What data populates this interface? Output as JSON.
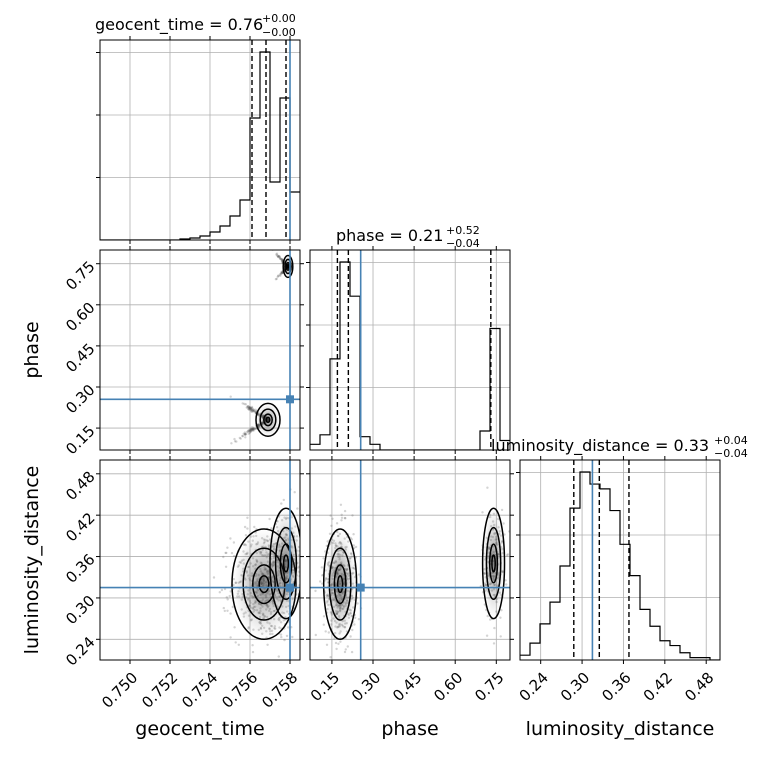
{
  "colors": {
    "truth": "#4682b4",
    "grid": "#b0b0b0",
    "hist": "#000000",
    "scatter": "#555555"
  },
  "titles": {
    "geocent_time": {
      "prefix": "geocent_time = 0.76",
      "plus": "+0.00",
      "minus": "−0.00"
    },
    "phase": {
      "prefix": "phase = 0.21",
      "plus": "+0.52",
      "minus": "−0.04"
    },
    "luminosity_distance": {
      "prefix": "luminosity_distance = 0.33",
      "plus": "+0.04",
      "minus": "−0.04"
    }
  },
  "axis_labels": {
    "x_geocent_time": "geocent_time",
    "x_phase": "phase",
    "x_luminosity_distance": "luminosity_distance",
    "y_phase": "phase",
    "y_luminosity_distance": "luminosity_distance"
  },
  "chart_data": {
    "type": "corner",
    "parameters": [
      "geocent_time",
      "phase",
      "luminosity_distance"
    ],
    "ranges": {
      "geocent_time": [
        0.7485,
        0.7585
      ],
      "phase": [
        0.07,
        0.8
      ],
      "luminosity_distance": [
        0.21,
        0.5
      ]
    },
    "ticks": {
      "geocent_time": [
        "0.750",
        "0.752",
        "0.754",
        "0.756",
        "0.758"
      ],
      "phase": [
        "0.15",
        "0.30",
        "0.45",
        "0.60",
        "0.75"
      ],
      "luminosity_distance": [
        "0.24",
        "0.30",
        "0.36",
        "0.42",
        "0.48"
      ]
    },
    "truths": {
      "geocent_time": 0.758,
      "phase": 0.255,
      "luminosity_distance": 0.315
    },
    "quantiles": {
      "geocent_time": [
        0.7561,
        0.7568,
        0.7578
      ],
      "phase": [
        0.17,
        0.21,
        0.73
      ],
      "luminosity_distance": [
        0.288,
        0.325,
        0.368
      ]
    },
    "histograms": {
      "geocent_time": {
        "bin_start": 0.7485,
        "bin_width": 0.0005,
        "values": [
          0,
          0,
          0,
          0,
          0,
          0,
          0,
          0,
          0.5,
          1,
          2,
          4,
          7,
          12,
          20,
          61,
          94,
          29,
          71,
          24
        ]
      },
      "phase": {
        "bin_start": 0.07,
        "bin_width": 0.0365,
        "values": [
          3,
          8,
          48,
          99,
          81,
          7,
          3,
          0,
          0,
          0,
          0,
          0,
          0,
          0,
          0,
          0,
          0,
          10,
          64,
          5
        ]
      },
      "luminosity_distance": {
        "bin_start": 0.21,
        "bin_width": 0.0145,
        "values": [
          2,
          7,
          15,
          24,
          39,
          63,
          78,
          73,
          71,
          62,
          48,
          35,
          21,
          14,
          8,
          6,
          3,
          1,
          1,
          0
        ]
      }
    },
    "scatter_2d": [
      {
        "x": "geocent_time",
        "y": "phase",
        "clusters": [
          "0.7569 ± 0.0003, 0.18 ± 0.03",
          "0.7579 ± 0.0001, 0.74 ± 0.02"
        ]
      },
      {
        "x": "geocent_time",
        "y": "luminosity_distance",
        "clusters": [
          "0.7567 ± 0.0008, 0.32 ± 0.04",
          "0.7578 ± 0.0004, 0.35 ± 0.04"
        ]
      },
      {
        "x": "phase",
        "y": "luminosity_distance",
        "clusters": [
          "0.18 ± 0.03, 0.32 ± 0.04",
          "0.74 ± 0.02, 0.35 ± 0.04"
        ]
      }
    ]
  }
}
